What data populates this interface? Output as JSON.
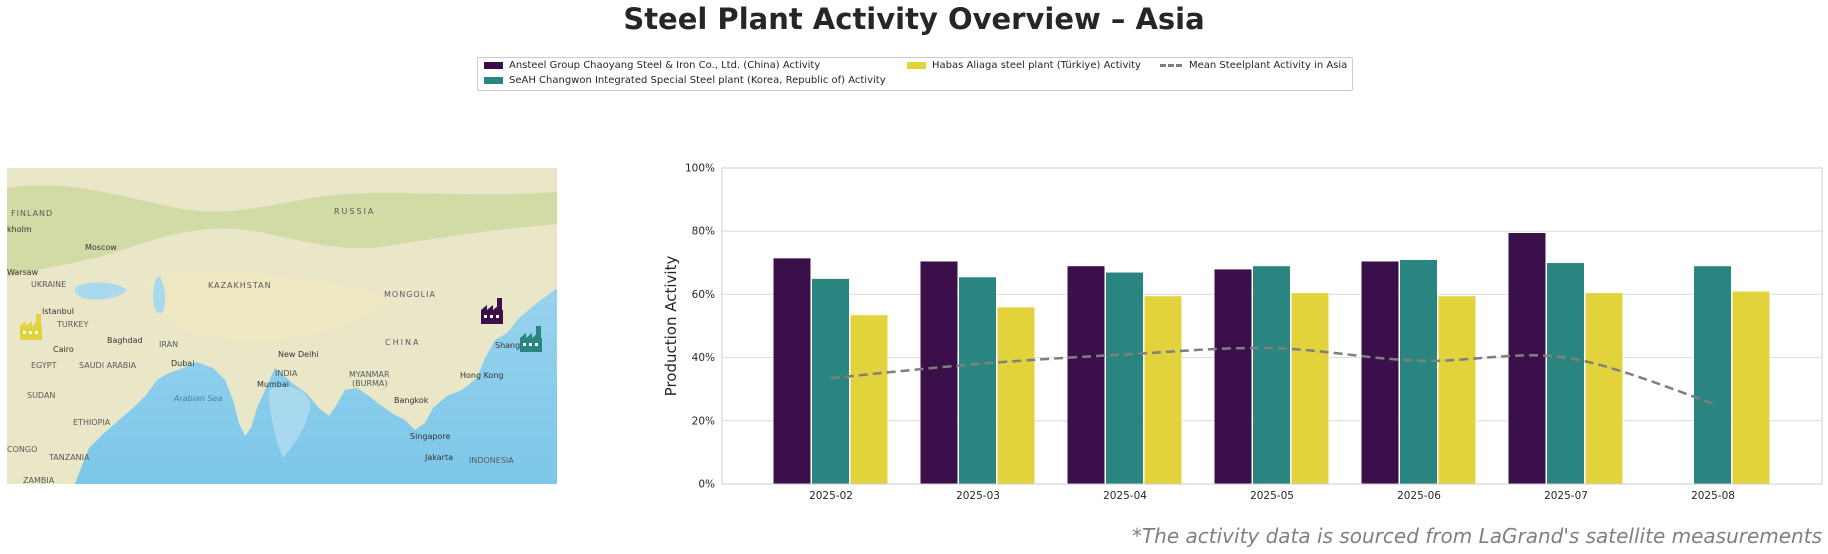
{
  "title": "Steel Plant Activity Overview – Asia",
  "legend": {
    "items": [
      {
        "label": "Ansteel Group Chaoyang Steel & Iron Co., Ltd. (China) Activity",
        "color": "#3b0f4a"
      },
      {
        "label": "SeAH Changwon Integrated Special Steel plant (Korea, Republic of) Activity",
        "color": "#2a8580"
      },
      {
        "label": "Habas Aliaga steel plant (Türkiye) Activity",
        "color": "#e2d33c"
      },
      {
        "label": "Mean Steelplant Activity in Asia",
        "color": "#7f7f7f"
      }
    ]
  },
  "map": {
    "labels": [
      "FINLAND",
      "RUSSIA",
      "kholm",
      "Moscow",
      "Warsaw",
      "UKRAINE",
      "KAZAKHSTAN",
      "MONGOLIA",
      "Istanbul",
      "TURKEY",
      "Baghdad",
      "IRAN",
      "CHINA",
      "Cairo",
      "EGYPT",
      "SAUDI ARABIA",
      "Dubai",
      "New Delhi",
      "INDIA",
      "Mumbai",
      "MYANMAR",
      "(BURMA)",
      "Shang",
      "Hong Kong",
      "Bangkok",
      "Arabian Sea",
      "SUDAN",
      "ETHIOPIA",
      "Singapore",
      "Jakarta",
      "INDONESIA",
      "CONGO",
      "TANZANIA",
      "ZAMBIA"
    ],
    "markers": [
      {
        "name": "Ansteel Group Chaoyang",
        "color": "#3b0f4a",
        "icon": "factory-icon"
      },
      {
        "name": "SeAH Changwon",
        "color": "#2a8580",
        "icon": "factory-icon"
      },
      {
        "name": "Habas Aliaga",
        "color": "#e2d33c",
        "icon": "factory-icon"
      }
    ]
  },
  "chart_data": {
    "type": "bar",
    "ylabel": "Production Activity",
    "xlabel": "",
    "ylim": [
      0,
      100
    ],
    "ytick_format": "percent",
    "yticks": [
      0,
      20,
      40,
      60,
      80,
      100
    ],
    "grid": true,
    "categories": [
      "2025-02",
      "2025-03",
      "2025-04",
      "2025-05",
      "2025-06",
      "2025-07",
      "2025-08"
    ],
    "series": [
      {
        "name": "Ansteel Group Chaoyang Steel & Iron Co., Ltd. (China) Activity",
        "color": "#3b0f4a",
        "values": [
          71.5,
          70.5,
          69,
          68,
          70.5,
          79.5,
          null
        ]
      },
      {
        "name": "SeAH Changwon Integrated Special Steel plant (Korea, Republic of) Activity",
        "color": "#2a8580",
        "values": [
          65,
          65.5,
          67,
          69,
          71,
          70,
          69
        ]
      },
      {
        "name": "Habas Aliaga steel plant (Türkiye) Activity",
        "color": "#e2d33c",
        "values": [
          53.5,
          56,
          59.5,
          60.5,
          59.5,
          60.5,
          61
        ]
      }
    ],
    "line": {
      "name": "Mean Steelplant Activity in Asia",
      "color": "#7f7f7f",
      "style": "dashed",
      "values": [
        33.5,
        38,
        41,
        43,
        39,
        40,
        25.5
      ]
    }
  },
  "footnote": "*The activity data is sourced from LaGrand's satellite measurements"
}
